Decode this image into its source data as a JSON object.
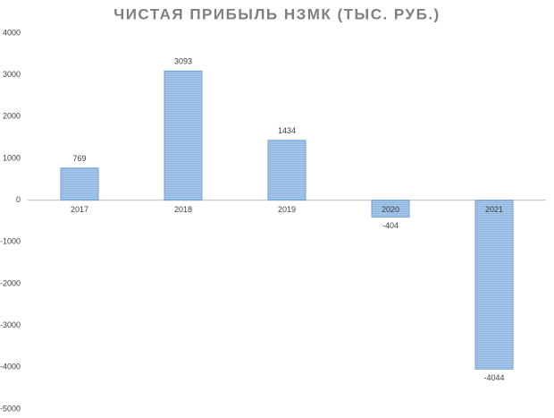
{
  "chart_data": {
    "type": "bar",
    "title": "ЧИСТАЯ ПРИБЫЛЬ НЗМК (ТЫС. РУБ.)",
    "categories": [
      "2017",
      "2018",
      "2019",
      "2020",
      "2021"
    ],
    "values": [
      769,
      3093,
      1434,
      -404,
      -4044
    ],
    "color": "#9dc3e6",
    "ylim": [
      -5000,
      4000
    ],
    "yticks": [
      -5000,
      -4000,
      -3000,
      -2000,
      -1000,
      0,
      1000,
      2000,
      3000,
      4000
    ],
    "grid": false,
    "data_labels": true
  }
}
